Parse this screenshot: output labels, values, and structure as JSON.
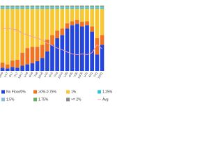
{
  "chart_data": {
    "type": "stacked_bar",
    "categories": [
      "10/16",
      "1/17",
      "4/17",
      "7/17",
      "10/17",
      "1/18",
      "4/18",
      "7/18",
      "10/18",
      "1/19",
      "4/19",
      "7/19",
      "10/19",
      "1/20",
      "4/20",
      "7/20",
      "10/20",
      "1/21",
      "4/21",
      "7/21",
      "10/21"
    ],
    "series": [
      {
        "name": "No Floor/0%",
        "color": "#2446dc",
        "values": [
          5,
          4,
          6,
          5,
          8,
          10,
          12,
          15,
          20,
          30,
          40,
          50,
          55,
          65,
          70,
          72,
          68,
          70,
          60,
          25,
          40
        ]
      },
      {
        "name": ">0%-0.75%",
        "color": "#f07222",
        "values": [
          8,
          6,
          10,
          12,
          20,
          25,
          25,
          22,
          20,
          18,
          15,
          12,
          10,
          8,
          6,
          6,
          7,
          6,
          8,
          25,
          15
        ]
      },
      {
        "name": "1%",
        "color": "#f8c834",
        "values": [
          82,
          85,
          79,
          78,
          67,
          60,
          58,
          58,
          55,
          47,
          40,
          33,
          30,
          22,
          19,
          17,
          20,
          19,
          27,
          45,
          40
        ]
      },
      {
        "name": "1.25%",
        "color": "#2ec4d6",
        "values": [
          2,
          2,
          2,
          2,
          2,
          2,
          2,
          2,
          2,
          2,
          2,
          2,
          2,
          2,
          2,
          2,
          2,
          2,
          2,
          2,
          2
        ]
      },
      {
        "name": "1.5%",
        "color": "#8cb8e8",
        "values": [
          1,
          1,
          1,
          1,
          1,
          1,
          1,
          1,
          1,
          1,
          1,
          1,
          1,
          1,
          1,
          1,
          1,
          1,
          1,
          1,
          1
        ]
      },
      {
        "name": "1.75%",
        "color": "#62b062",
        "values": [
          1,
          1,
          1,
          1,
          1,
          1,
          1,
          1,
          1,
          1,
          1,
          1,
          1,
          1,
          1,
          1,
          1,
          1,
          1,
          1,
          1
        ]
      },
      {
        "name": ">= 2%",
        "color": "#8a8a8a",
        "values": [
          1,
          1,
          1,
          1,
          1,
          1,
          1,
          1,
          1,
          1,
          1,
          1,
          1,
          1,
          1,
          1,
          1,
          1,
          1,
          1,
          1
        ]
      },
      {
        "name": "Avg",
        "color": "#f2a0a0",
        "axis": "y2",
        "values": [
          1.3,
          1.32,
          1.28,
          1.25,
          1.15,
          1.1,
          1.05,
          1.0,
          0.95,
          0.85,
          0.78,
          0.7,
          0.65,
          0.58,
          0.52,
          0.5,
          0.52,
          0.5,
          0.56,
          0.8,
          0.68
        ]
      }
    ],
    "ylim": [
      0,
      100
    ],
    "y2lim": [
      0,
      2
    ]
  }
}
